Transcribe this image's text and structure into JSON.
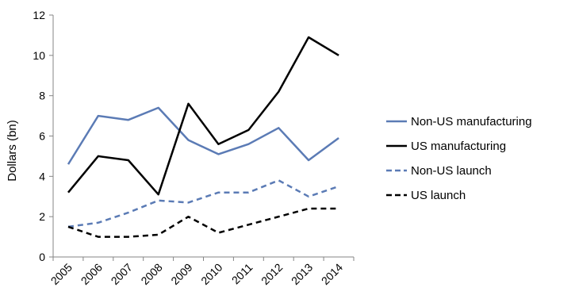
{
  "chart_data": {
    "type": "line",
    "title": "",
    "xlabel": "",
    "ylabel": "Dollars (bn)",
    "categories": [
      "2005",
      "2006",
      "2007",
      "2008",
      "2009",
      "2010",
      "2011",
      "2012",
      "2013",
      "2014"
    ],
    "ylim": [
      0,
      12
    ],
    "yticks": [
      0,
      2,
      4,
      6,
      8,
      10,
      12
    ],
    "grid": false,
    "legend_position": "right",
    "series": [
      {
        "name": "Non-US manufacturing",
        "color": "#5b7bb5",
        "dash": "solid",
        "values": [
          4.6,
          7.0,
          6.8,
          7.4,
          5.8,
          5.1,
          5.6,
          6.4,
          4.8,
          5.9
        ]
      },
      {
        "name": "US manufacturing",
        "color": "#000000",
        "dash": "solid",
        "values": [
          3.2,
          5.0,
          4.8,
          3.1,
          7.6,
          5.6,
          6.3,
          8.2,
          10.9,
          10.0
        ]
      },
      {
        "name": "Non-US launch",
        "color": "#5b7bb5",
        "dash": "dashed",
        "values": [
          1.5,
          1.7,
          2.2,
          2.8,
          2.7,
          3.2,
          3.2,
          3.8,
          3.0,
          3.5
        ]
      },
      {
        "name": "US launch",
        "color": "#000000",
        "dash": "dashed",
        "values": [
          1.5,
          1.0,
          1.0,
          1.1,
          2.0,
          1.2,
          1.6,
          2.0,
          2.4,
          2.4
        ]
      }
    ]
  }
}
